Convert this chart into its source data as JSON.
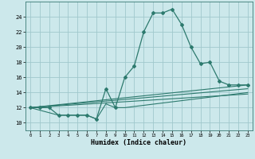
{
  "xlabel": "Humidex (Indice chaleur)",
  "background_color": "#cce8eb",
  "grid_color": "#a0c8cc",
  "line_color": "#2d7a6e",
  "xlim": [
    -0.5,
    23.5
  ],
  "ylim": [
    9.0,
    26.0
  ],
  "xticks": [
    0,
    1,
    2,
    3,
    4,
    5,
    6,
    7,
    8,
    9,
    10,
    11,
    12,
    13,
    14,
    15,
    16,
    17,
    18,
    19,
    20,
    21,
    22,
    23
  ],
  "yticks": [
    10,
    12,
    14,
    16,
    18,
    20,
    22,
    24
  ],
  "main_line_x": [
    0,
    1,
    2,
    3,
    4,
    5,
    6,
    7,
    8,
    9,
    10,
    11,
    12,
    13,
    14,
    15,
    16,
    17,
    18,
    19,
    20,
    21,
    22,
    23
  ],
  "main_line_y": [
    12.0,
    12.0,
    12.0,
    11.0,
    11.0,
    11.0,
    11.0,
    10.5,
    14.5,
    12.0,
    16.0,
    17.5,
    22.0,
    24.5,
    24.5,
    25.0,
    23.0,
    20.0,
    17.8,
    18.0,
    15.5,
    15.0,
    15.0,
    15.0
  ],
  "line2_x": [
    0,
    23
  ],
  "line2_y": [
    12.0,
    15.0
  ],
  "line3_x": [
    0,
    23
  ],
  "line3_y": [
    12.0,
    14.5
  ],
  "line4_x": [
    0,
    23
  ],
  "line4_y": [
    12.0,
    13.8
  ],
  "line5_x": [
    0,
    3,
    6,
    7,
    8,
    9,
    10,
    23
  ],
  "line5_y": [
    12.0,
    11.0,
    11.0,
    10.5,
    12.5,
    12.0,
    12.0,
    14.0
  ]
}
